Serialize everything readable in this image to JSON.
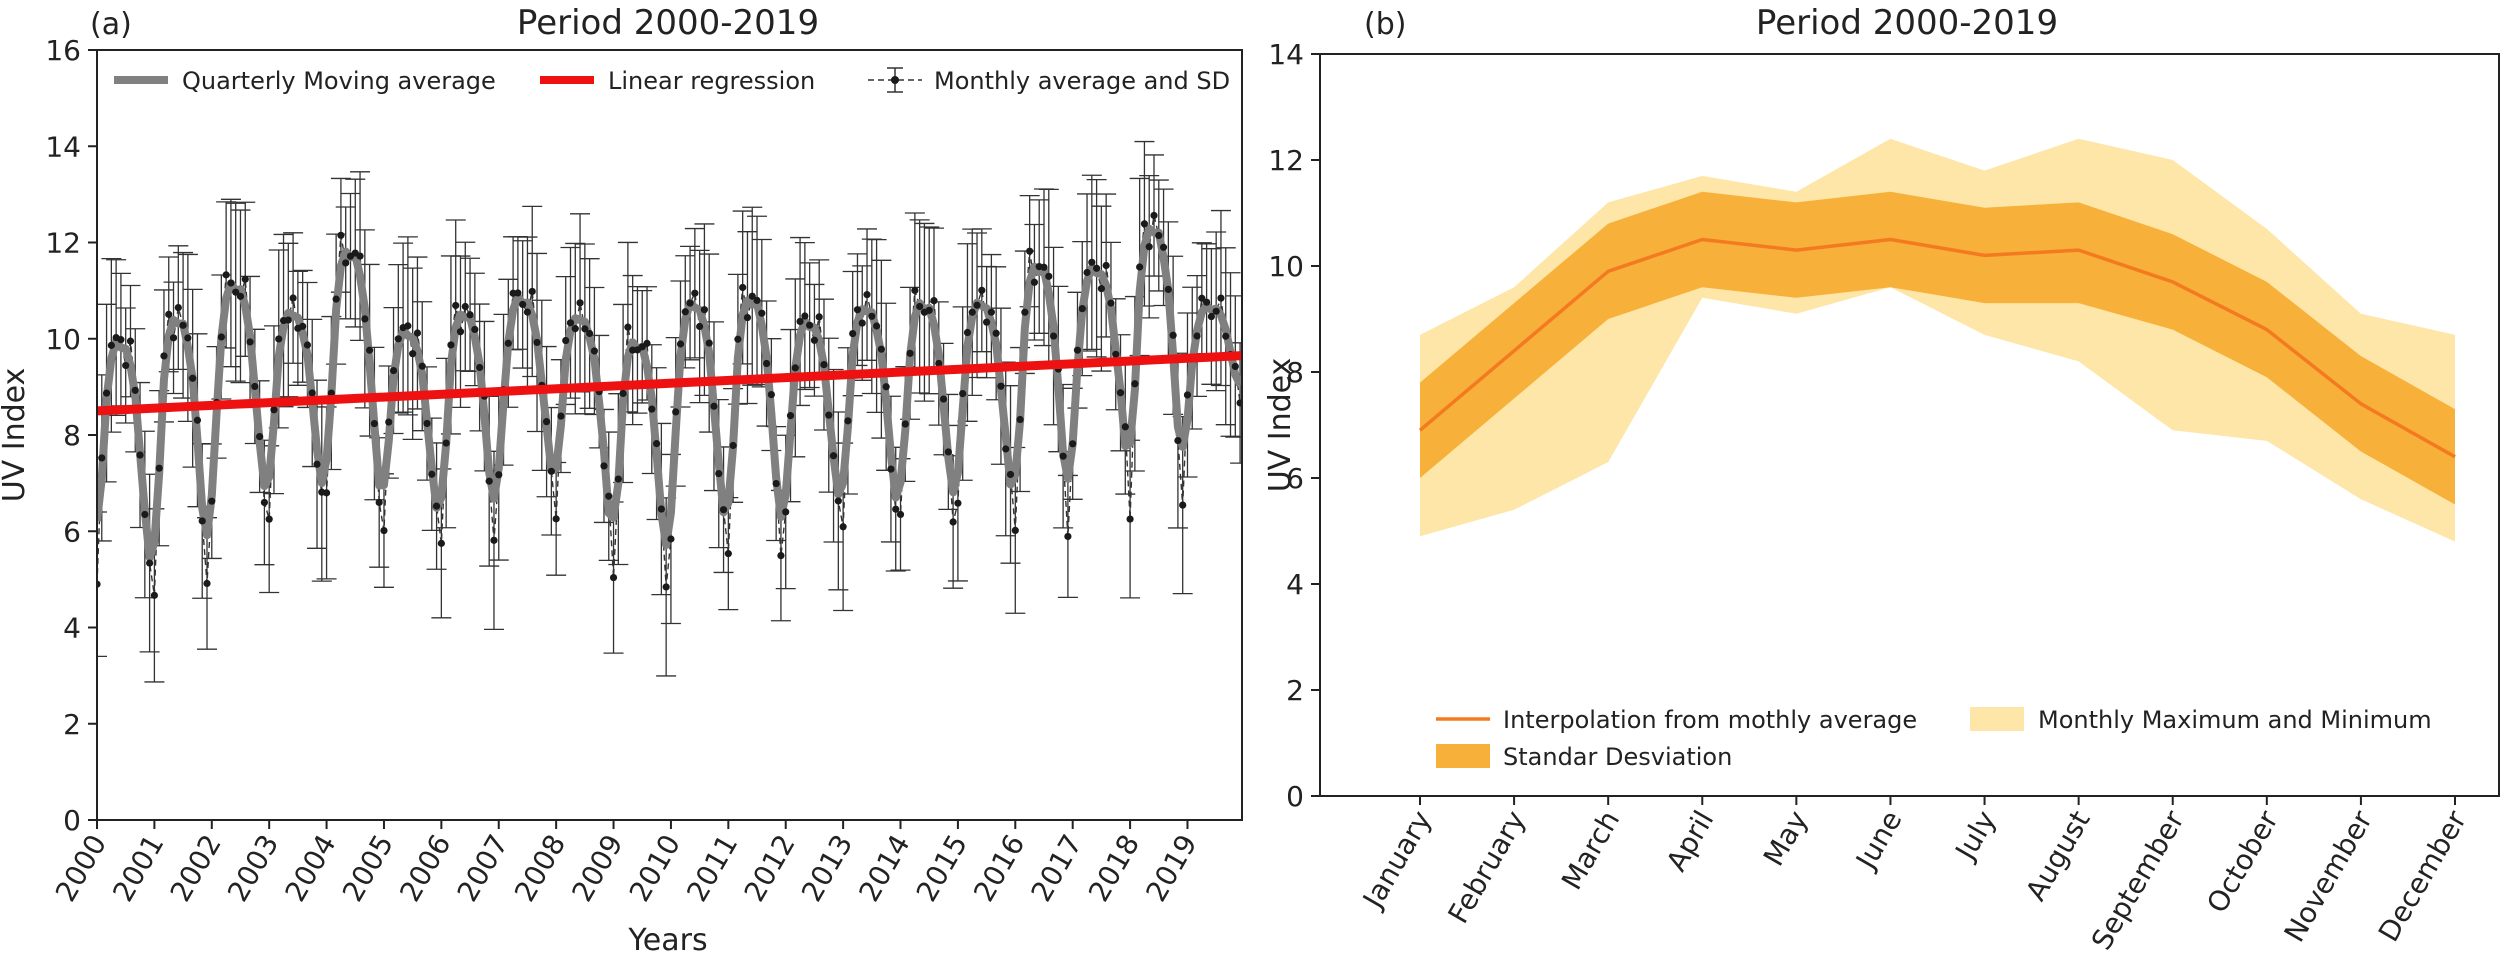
{
  "figure": {
    "panel_a_label": "(a)",
    "panel_b_label": "(b)"
  },
  "colors": {
    "moving_average": "#808080",
    "regression": "#ee1111",
    "monthly_points": "#1a1a1a",
    "errorbar": "#333333",
    "interp_line": "#f47a20",
    "sd_band": "#f7b03a",
    "minmax_band": "#fde6a8"
  },
  "chart_data": [
    {
      "type": "line",
      "title": "Period 2000-2019",
      "xlabel": "Years",
      "ylabel": "UV Index",
      "xlim": [
        2000.0,
        2019.95
      ],
      "ylim": [
        0,
        16
      ],
      "yticks": [
        0,
        2,
        4,
        6,
        8,
        10,
        12,
        14,
        16
      ],
      "xticks": [
        "2000",
        "2001",
        "2002",
        "2003",
        "2004",
        "2005",
        "2006",
        "2007",
        "2008",
        "2009",
        "2010",
        "2011",
        "2012",
        "2013",
        "2014",
        "2015",
        "2016",
        "2017",
        "2018",
        "2019"
      ],
      "legend": [
        "Quarterly Moving average",
        "Linear regression",
        "Monthly average and SD"
      ],
      "legend_placement": "top",
      "grid": false,
      "regression": {
        "x": [
          2000.0,
          2019.95
        ],
        "y": [
          8.5,
          9.65
        ]
      },
      "monthly_avg_approx": {
        "start": "2000-01",
        "end": "2019-12",
        "profile_by_month": [
          5.6,
          7.8,
          9.4,
          10.3,
          10.1,
          10.3,
          10.0,
          10.1,
          9.2,
          8.3,
          6.9,
          5.8
        ],
        "sd_approx": 1.5,
        "annual_peaks": [
          10.0,
          10.5,
          11.2,
          10.6,
          11.9,
          10.2,
          10.6,
          10.9,
          10.5,
          10.0,
          10.8,
          10.9,
          10.4,
          10.7,
          10.8,
          10.8,
          11.6,
          11.5,
          12.4,
          10.7
        ],
        "annual_minima": [
          4.9,
          4.8,
          6.4,
          6.5,
          6.6,
          6.1,
          5.8,
          7.0,
          6.5,
          4.8,
          6.0,
          5.5,
          6.3,
          6.3,
          6.1,
          6.8,
          5.9,
          7.8,
          6.4,
          8.6
        ]
      }
    },
    {
      "type": "area",
      "title": "Period 2000-2019",
      "xlabel": "",
      "ylabel": "UV Index",
      "ylim": [
        0,
        14
      ],
      "yticks": [
        0,
        2,
        4,
        6,
        8,
        10,
        12,
        14
      ],
      "categories": [
        "January",
        "February",
        "March",
        "April",
        "May",
        "June",
        "July",
        "August",
        "September",
        "October",
        "November",
        "December"
      ],
      "legend_placement": "bottom",
      "grid": false,
      "series": [
        {
          "name": "Interpolation from mothly average",
          "kind": "line",
          "values": [
            6.9,
            8.4,
            9.9,
            10.5,
            10.3,
            10.5,
            10.2,
            10.3,
            9.7,
            8.8,
            7.4,
            6.4
          ]
        },
        {
          "name": "Standar Desviation",
          "kind": "band",
          "lower": [
            6.0,
            7.5,
            9.0,
            9.6,
            9.4,
            9.6,
            9.3,
            9.3,
            8.8,
            7.9,
            6.5,
            5.5
          ],
          "upper": [
            7.8,
            9.3,
            10.8,
            11.4,
            11.2,
            11.4,
            11.1,
            11.2,
            10.6,
            9.7,
            8.3,
            7.3
          ]
        },
        {
          "name": "Monthly Maximum and Minimum",
          "kind": "band",
          "lower": [
            4.9,
            5.4,
            6.3,
            9.4,
            9.1,
            9.6,
            8.7,
            8.2,
            6.9,
            6.7,
            5.6,
            4.8
          ],
          "upper": [
            8.7,
            9.6,
            11.2,
            11.7,
            11.4,
            12.4,
            11.8,
            12.4,
            12.0,
            10.7,
            9.1,
            8.7
          ]
        }
      ]
    }
  ]
}
